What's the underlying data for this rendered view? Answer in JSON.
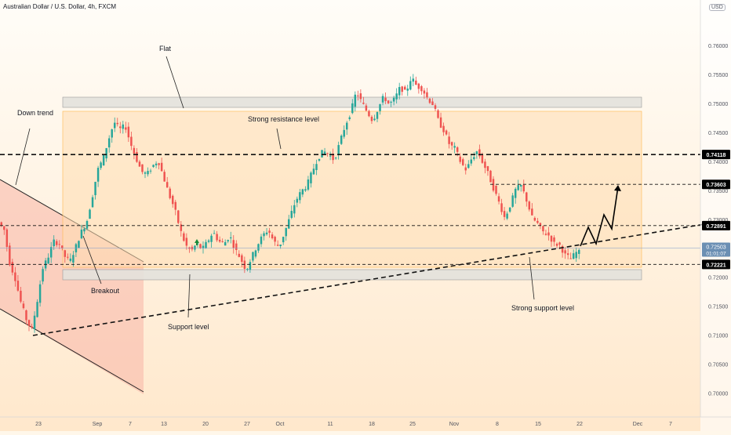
{
  "header": {
    "symbol_title": "Australian Dollar / U.S. Dollar, 4h, FXCM",
    "currency": "USD"
  },
  "chart_data": {
    "type": "candlestick",
    "title": "Australian Dollar / U.S. Dollar, 4h, FXCM",
    "ylim": [
      0.6975,
      0.7665
    ],
    "y_ticks": [
      "0.76000",
      "0.75500",
      "0.75000",
      "0.74500",
      "0.74000",
      "0.73500",
      "0.73000",
      "0.72500",
      "0.72000",
      "0.71500",
      "0.71000",
      "0.70500",
      "0.70000"
    ],
    "x_ticks": [
      "23",
      "Sep",
      "7",
      "13",
      "20",
      "27",
      "Oct",
      "11",
      "18",
      "25",
      "Nov",
      "8",
      "15",
      "22",
      "Dec",
      "7"
    ],
    "path_points": [
      [
        0,
        0.7295
      ],
      [
        2,
        0.7282
      ],
      [
        4,
        0.7225
      ],
      [
        6,
        0.7198
      ],
      [
        8,
        0.7158
      ],
      [
        10,
        0.7128
      ],
      [
        12,
        0.7108
      ],
      [
        14,
        0.7158
      ],
      [
        16,
        0.7215
      ],
      [
        18,
        0.7235
      ],
      [
        20,
        0.7262
      ],
      [
        22,
        0.7258
      ],
      [
        24,
        0.7236
      ],
      [
        26,
        0.7228
      ],
      [
        28,
        0.7252
      ],
      [
        30,
        0.7278
      ],
      [
        32,
        0.7295
      ],
      [
        34,
        0.7338
      ],
      [
        36,
        0.7385
      ],
      [
        38,
        0.7405
      ],
      [
        40,
        0.7438
      ],
      [
        42,
        0.7468
      ],
      [
        44,
        0.7455
      ],
      [
        46,
        0.7462
      ],
      [
        48,
        0.743
      ],
      [
        50,
        0.7405
      ],
      [
        52,
        0.7382
      ],
      [
        54,
        0.7378
      ],
      [
        56,
        0.7392
      ],
      [
        58,
        0.7402
      ],
      [
        60,
        0.7372
      ],
      [
        62,
        0.7342
      ],
      [
        64,
        0.7318
      ],
      [
        66,
        0.7282
      ],
      [
        68,
        0.7255
      ],
      [
        70,
        0.7245
      ],
      [
        72,
        0.7258
      ],
      [
        74,
        0.7248
      ],
      [
        76,
        0.7262
      ],
      [
        78,
        0.7278
      ],
      [
        80,
        0.7262
      ],
      [
        82,
        0.7258
      ],
      [
        84,
        0.7272
      ],
      [
        86,
        0.7248
      ],
      [
        88,
        0.7232
      ],
      [
        90,
        0.7212
      ],
      [
        92,
        0.7235
      ],
      [
        94,
        0.7255
      ],
      [
        96,
        0.7272
      ],
      [
        98,
        0.7282
      ],
      [
        100,
        0.7262
      ],
      [
        102,
        0.7252
      ],
      [
        104,
        0.7278
      ],
      [
        106,
        0.7305
      ],
      [
        108,
        0.7332
      ],
      [
        110,
        0.7348
      ],
      [
        112,
        0.7358
      ],
      [
        114,
        0.7382
      ],
      [
        116,
        0.7405
      ],
      [
        118,
        0.7418
      ],
      [
        120,
        0.7412
      ],
      [
        122,
        0.7402
      ],
      [
        124,
        0.7432
      ],
      [
        126,
        0.7462
      ],
      [
        128,
        0.7485
      ],
      [
        130,
        0.752
      ],
      [
        132,
        0.7502
      ],
      [
        134,
        0.7485
      ],
      [
        136,
        0.747
      ],
      [
        138,
        0.7492
      ],
      [
        140,
        0.7512
      ],
      [
        142,
        0.7498
      ],
      [
        144,
        0.7508
      ],
      [
        146,
        0.7528
      ],
      [
        148,
        0.7518
      ],
      [
        150,
        0.7545
      ],
      [
        152,
        0.753
      ],
      [
        154,
        0.7525
      ],
      [
        156,
        0.7508
      ],
      [
        158,
        0.7498
      ],
      [
        160,
        0.7468
      ],
      [
        162,
        0.7452
      ],
      [
        164,
        0.7428
      ],
      [
        166,
        0.7422
      ],
      [
        168,
        0.7398
      ],
      [
        170,
        0.7385
      ],
      [
        172,
        0.7405
      ],
      [
        174,
        0.7418
      ],
      [
        176,
        0.7398
      ],
      [
        178,
        0.7378
      ],
      [
        180,
        0.7352
      ],
      [
        182,
        0.7328
      ],
      [
        184,
        0.7302
      ],
      [
        186,
        0.7325
      ],
      [
        188,
        0.7352
      ],
      [
        190,
        0.7358
      ],
      [
        192,
        0.7332
      ],
      [
        194,
        0.7302
      ],
      [
        196,
        0.7292
      ],
      [
        198,
        0.7278
      ],
      [
        200,
        0.7272
      ],
      [
        202,
        0.7258
      ],
      [
        204,
        0.7255
      ],
      [
        206,
        0.7238
      ],
      [
        208,
        0.7232
      ],
      [
        210,
        0.7243
      ]
    ],
    "current_price_label": "0.72503",
    "countdown": "01:01:07",
    "price_lines": [
      {
        "label": "0.74118",
        "value": 0.74118,
        "style": "dashed-bold"
      },
      {
        "label": "0.73603",
        "value": 0.73603,
        "style": "dashed"
      },
      {
        "label": "0.72891",
        "value": 0.72891,
        "style": "dashed"
      },
      {
        "label": "0.72221",
        "value": 0.72221,
        "style": "dashed"
      }
    ],
    "annotations": [
      "Down trend",
      "Flat",
      "Strong resistance level",
      "Breakout",
      "Support level",
      "Strong support level"
    ],
    "projection": [
      [
        0.725,
        0.7292,
        0.7262,
        0.7305,
        0.7275,
        0.735
      ]
    ],
    "colors": {
      "up": "#26a69a",
      "down": "#ef5350",
      "zone": "#ffe0b2",
      "zone_border": "#ffb74d",
      "channel": "#f8b4a6",
      "level_box": "#e0e0e0"
    },
    "grid": false
  }
}
